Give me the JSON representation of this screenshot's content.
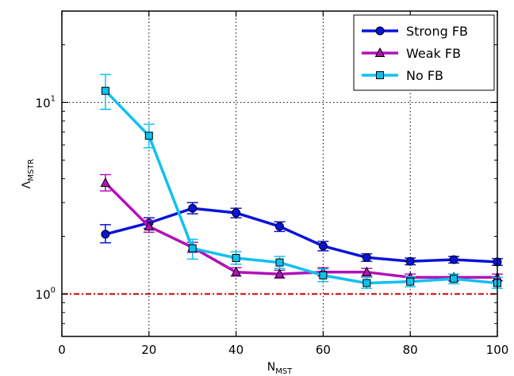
{
  "chart_data": {
    "type": "line",
    "title": "",
    "xlabel": {
      "base": "N",
      "sub": "MST"
    },
    "ylabel": {
      "base": "Λ",
      "sub": "MSTR"
    },
    "xlim": [
      0,
      100
    ],
    "ylim": [
      0.6,
      30
    ],
    "yscale": "log",
    "xticks": [
      0,
      20,
      40,
      60,
      80,
      100
    ],
    "yticks": [
      {
        "value": 1,
        "base": "10",
        "exp": "0"
      },
      {
        "value": 10,
        "base": "10",
        "exp": "1"
      }
    ],
    "grid": "dotted vertical at x ticks; dotted horizontal at y = 10",
    "reference_line": {
      "y": 1,
      "color": "#cc0000",
      "style": "dash-dot"
    },
    "legend_position": "top-right",
    "x": [
      10,
      20,
      30,
      40,
      50,
      60,
      70,
      80,
      90,
      100
    ],
    "series": [
      {
        "name": "Strong FB",
        "color": "#0a14d8",
        "marker": "circle",
        "values": [
          2.05,
          2.35,
          2.8,
          2.65,
          2.25,
          1.78,
          1.55,
          1.48,
          1.51,
          1.47
        ],
        "err_low": [
          1.85,
          2.2,
          2.62,
          2.5,
          2.12,
          1.68,
          1.48,
          1.42,
          1.45,
          1.41
        ],
        "err_high": [
          2.3,
          2.5,
          3.0,
          2.8,
          2.38,
          1.88,
          1.62,
          1.54,
          1.57,
          1.53
        ]
      },
      {
        "name": "Weak FB",
        "color": "#b012b8",
        "marker": "triangle",
        "values": [
          3.8,
          2.25,
          1.75,
          1.3,
          1.27,
          1.3,
          1.3,
          1.22,
          1.22,
          1.22
        ],
        "err_low": [
          3.45,
          2.1,
          1.65,
          1.24,
          1.21,
          1.24,
          1.24,
          1.17,
          1.17,
          1.17
        ],
        "err_high": [
          4.2,
          2.42,
          1.86,
          1.37,
          1.33,
          1.37,
          1.36,
          1.27,
          1.27,
          1.27
        ]
      },
      {
        "name": "No FB",
        "color": "#10c0f0",
        "marker": "square",
        "values": [
          11.5,
          6.7,
          1.73,
          1.54,
          1.46,
          1.25,
          1.14,
          1.16,
          1.2,
          1.14
        ],
        "err_low": [
          9.2,
          5.8,
          1.52,
          1.43,
          1.36,
          1.16,
          1.07,
          1.09,
          1.13,
          1.07
        ],
        "err_high": [
          14.0,
          7.7,
          1.93,
          1.66,
          1.57,
          1.35,
          1.22,
          1.23,
          1.27,
          1.22
        ]
      }
    ]
  }
}
